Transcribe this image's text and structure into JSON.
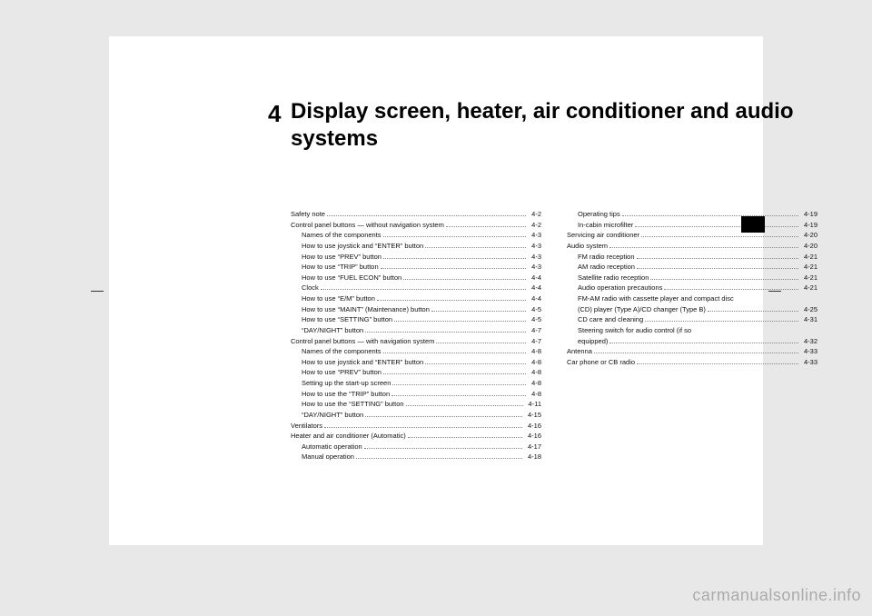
{
  "chapter_number": "4",
  "chapter_title": "Display screen, heater, air conditioner and audio systems",
  "watermark": "carmanualsonline.info",
  "toc": {
    "left": [
      {
        "label": "Safety note",
        "page": "4-2",
        "indent": false
      },
      {
        "label": "Control panel buttons — without navigation system",
        "page": "4-2",
        "indent": false,
        "tight": true
      },
      {
        "label": "Names of the components",
        "page": "4-3",
        "indent": true
      },
      {
        "label": "How to use joystick and “ENTER” button",
        "page": "4-3",
        "indent": true
      },
      {
        "label": "How to use “PREV” button",
        "page": "4-3",
        "indent": true
      },
      {
        "label": "How to use “TRIP” button",
        "page": "4-3",
        "indent": true
      },
      {
        "label": "How to use “FUEL ECON” button",
        "page": "4-4",
        "indent": true
      },
      {
        "label": "Clock",
        "page": "4-4",
        "indent": true
      },
      {
        "label": "How to use “E/M” button",
        "page": "4-4",
        "indent": true
      },
      {
        "label": "How to use “MAINT” (Maintenance) button",
        "page": "4-5",
        "indent": true
      },
      {
        "label": "How to use “SETTING” button",
        "page": "4-5",
        "indent": true
      },
      {
        "label": "“DAY/NIGHT” button",
        "page": "4-7",
        "indent": true
      },
      {
        "label": "Control panel buttons — with navigation system",
        "page": "4-7",
        "indent": false
      },
      {
        "label": "Names of the components",
        "page": "4-8",
        "indent": true
      },
      {
        "label": "How to use joystick and “ENTER” button",
        "page": "4-8",
        "indent": true
      },
      {
        "label": "How to use “PREV” button",
        "page": "4-8",
        "indent": true
      },
      {
        "label": "Setting up the start-up screen",
        "page": "4-8",
        "indent": true
      },
      {
        "label": "How to use the “TRIP” button",
        "page": "4-8",
        "indent": true
      },
      {
        "label": "How to use the “SETTING” button",
        "page": "4-11",
        "indent": true
      },
      {
        "label": "“DAY/NIGHT” button",
        "page": "4-15",
        "indent": true
      },
      {
        "label": "Ventilators",
        "page": "4-16",
        "indent": false
      },
      {
        "label": "Heater and air conditioner (Automatic)",
        "page": "4-16",
        "indent": false
      },
      {
        "label": "Automatic operation",
        "page": "4-17",
        "indent": true
      },
      {
        "label": "Manual operation",
        "page": "4-18",
        "indent": true
      }
    ],
    "right": [
      {
        "label": "Operating tips",
        "page": "4-19",
        "indent": true
      },
      {
        "label": "In-cabin microfilter",
        "page": "4-19",
        "indent": true
      },
      {
        "label": "Servicing air conditioner",
        "page": "4-20",
        "indent": false
      },
      {
        "label": "Audio system",
        "page": "4-20",
        "indent": false
      },
      {
        "label": "FM radio reception",
        "page": "4-21",
        "indent": true
      },
      {
        "label": "AM radio reception",
        "page": "4-21",
        "indent": true
      },
      {
        "label": "Satellite radio reception",
        "page": "4-21",
        "indent": true
      },
      {
        "label": "Audio operation precautions",
        "page": "4-21",
        "indent": true
      },
      {
        "label": "FM-AM radio with cassette player and compact disc",
        "page": "",
        "indent": true,
        "nodots": true
      },
      {
        "label": "(CD) player (Type A)/CD changer (Type B)",
        "page": "4-25",
        "indent": true
      },
      {
        "label": "CD care and cleaning",
        "page": "4-31",
        "indent": true
      },
      {
        "label": "Steering switch for audio control (if so",
        "page": "",
        "indent": true,
        "nodots": true
      },
      {
        "label": "equipped)",
        "page": "4-32",
        "indent": true
      },
      {
        "label": "Antenna",
        "page": "4-33",
        "indent": false
      },
      {
        "label": "Car phone or CB radio",
        "page": "4-33",
        "indent": false
      }
    ]
  }
}
